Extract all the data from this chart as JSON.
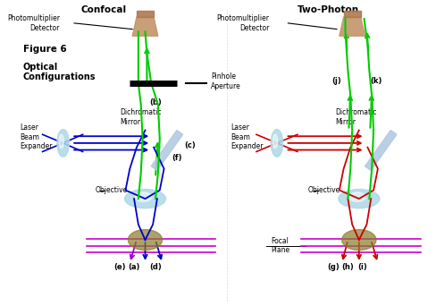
{
  "bg_color": "#f0f0f0",
  "title_confocal": "Confocal",
  "title_twophoton": "Two-Photon",
  "label_photomultiplier": "Photomultiplier\nDetector",
  "label_optical": "Optical\nConfigurations",
  "label_pinhole": "Pinhole\nAperture",
  "label_laser_expander": "Laser\nBeam\nExpander",
  "label_dichromatic": "Dichromatic\nMirror",
  "label_objective": "Objective",
  "label_figure": "Figure 6",
  "label_focal_plane": "Focal\nPlane",
  "color_blue": "#0000cc",
  "color_green": "#00cc00",
  "color_purple": "#9900cc",
  "color_red": "#cc0000",
  "color_magenta": "#cc00cc",
  "color_dark_red": "#8b0000",
  "color_dark_green": "#006600",
  "labels_bottom_left": [
    "(e)",
    "(a)",
    "(d)"
  ],
  "labels_bottom_right": [
    "(g)",
    "(h)",
    "(i)"
  ],
  "label_b": "(b)",
  "label_c": "(c)",
  "label_f": "(f)",
  "label_j": "(j)",
  "label_k": "(k)"
}
